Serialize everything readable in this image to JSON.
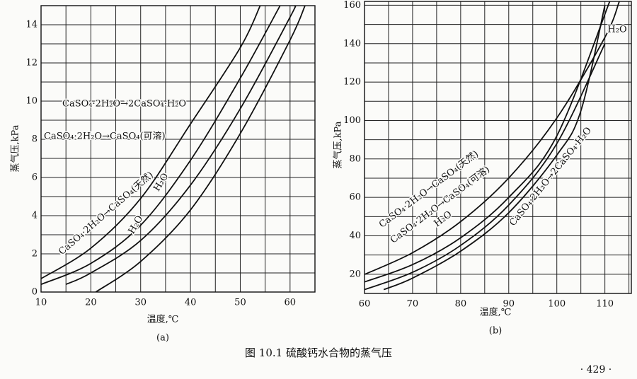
{
  "chart_data": [
    {
      "type": "line",
      "ylabel": "蒸气压,kPa",
      "xlabel": "温度,℃",
      "sublabel": "(a)",
      "xlim": [
        10,
        65
      ],
      "ylim": [
        0,
        15
      ],
      "xticks": [
        10,
        20,
        30,
        40,
        50,
        60
      ],
      "yticks": [
        0,
        2,
        4,
        6,
        8,
        10,
        12,
        14
      ],
      "x_minor_grid": [
        15,
        25,
        35,
        45,
        55
      ],
      "y_minor_grid": [
        1,
        3,
        5,
        7,
        9,
        11,
        13
      ],
      "grid": true,
      "series": [
        {
          "color": "#111111",
          "x": [
            10,
            20,
            30,
            40,
            50,
            54
          ],
          "values": [
            0.7,
            2.3,
            4.9,
            8.8,
            12.8,
            15
          ]
        },
        {
          "color": "#111111",
          "x": [
            10,
            20,
            30,
            40,
            50,
            58
          ],
          "values": [
            0.4,
            1.5,
            3.5,
            6.9,
            11.2,
            15
          ]
        },
        {
          "color": "#111111",
          "x": [
            15,
            20,
            30,
            40,
            50,
            60,
            61
          ],
          "values": [
            0.4,
            1.0,
            2.7,
            5.6,
            9.6,
            14.4,
            15
          ]
        },
        {
          "color": "#111111",
          "x": [
            21,
            30,
            40,
            50,
            60,
            63
          ],
          "values": [
            0,
            1.6,
            4.3,
            8.3,
            13.2,
            15
          ]
        }
      ],
      "annotations": [
        "CaSO₄·2H₂O→2CaSO₄·H₂O",
        "CaSO₄·2H₂O→CaSO₄(可溶)",
        "H₂O",
        "CaSO₄·2H₂O→CaSO₄(天然)",
        "H₂O"
      ]
    },
    {
      "type": "line",
      "ylabel": "蒸气压,kPa",
      "xlabel": "温度,℃",
      "sublabel": "(b)",
      "xlim": [
        60,
        115.5
      ],
      "ylim": [
        10,
        162
      ],
      "xticks": [
        60,
        70,
        80,
        90,
        100,
        110
      ],
      "yticks": [
        20,
        40,
        60,
        80,
        100,
        120,
        140,
        160
      ],
      "x_minor_grid": [
        65,
        75,
        85,
        95,
        105,
        115
      ],
      "y_minor_grid": [
        30,
        50,
        70,
        90,
        110,
        130,
        150
      ],
      "grid": true,
      "series": [
        {
          "color": "#111111",
          "x": [
            60,
            70,
            80,
            90,
            100,
            110,
            113
          ],
          "values": [
            19.9,
            31.2,
            47.4,
            70.1,
            101.3,
            143.3,
            162
          ]
        },
        {
          "color": "#111111",
          "x": [
            60,
            70,
            80,
            90,
            100,
            111
          ],
          "values": [
            16,
            25,
            39,
            60,
            92,
            162
          ]
        },
        {
          "color": "#111111",
          "x": [
            60,
            70,
            80,
            90,
            100,
            110
          ],
          "values": [
            12,
            21,
            35,
            56,
            88,
            140
          ]
        },
        {
          "color": "#111111",
          "x": [
            64,
            70,
            80,
            90,
            100,
            105,
            110
          ],
          "values": [
            12,
            18,
            32,
            52,
            82,
            105,
            160
          ]
        }
      ],
      "annotations": [
        "H₂O",
        "CaSO₄·2H₂O→CaSO₄(天然)",
        "CaSO₄·2H₂O→CaSO₄(可溶)",
        "H₂O",
        "CaSO₄·2H₂O→2CaSO₄·H₂O"
      ]
    }
  ],
  "caption": "图 10.1  硫酸钙水合物的蒸气压",
  "page_number": "· 429 ·"
}
